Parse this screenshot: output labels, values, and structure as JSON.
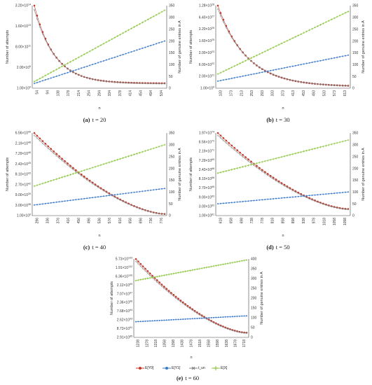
{
  "colors": {
    "ey0": "#c0392b",
    "ey1": "#3a78c9",
    "tun": "#7f7f7f",
    "ex": "#8cc63f",
    "axis": "#444444"
  },
  "legend": [
    {
      "key": "ey0",
      "label": "E[Y0]"
    },
    {
      "key": "ey1",
      "label": "E[Y1]"
    },
    {
      "key": "tun",
      "label": "t_un"
    },
    {
      "key": "ex",
      "label": "E[X]"
    }
  ],
  "chart_data": [
    {
      "type": "line",
      "caption_letter": "(a)",
      "caption_text": "t = 20",
      "xlabel": "n",
      "ylabel_left": "Number of attempts",
      "ylabel_right": "Number of genuine entries in A",
      "x_ticks": [
        "54",
        "94",
        "138",
        "178",
        "214",
        "254",
        "294",
        "334",
        "378",
        "414",
        "454",
        "494",
        "534"
      ],
      "y_left_ticks": [
        "1.00×10^0",
        "2.00×10^5",
        "8.00×10^11",
        "1.60×10^13",
        "3.20×10^14"
      ],
      "y_right_ticks": [
        "0",
        "50",
        "100",
        "150",
        "200",
        "250",
        "300",
        "350"
      ],
      "y_right_lim": [
        0,
        350
      ],
      "n_points": 48,
      "series": [
        {
          "key": "ey0",
          "axis": "left",
          "start": 1.0,
          "end": 0.06,
          "shape": "decay",
          "k": 6.5
        },
        {
          "key": "tun",
          "axis": "left",
          "start": 0.95,
          "end": 0.055,
          "shape": "decay",
          "k": 6.2
        },
        {
          "key": "ey1",
          "axis": "right",
          "start": 20,
          "end": 200,
          "shape": "linear"
        },
        {
          "key": "ex",
          "axis": "right",
          "start": 28,
          "end": 330,
          "shape": "linear"
        }
      ]
    },
    {
      "type": "line",
      "caption_letter": "(b)",
      "caption_text": "t = 30",
      "xlabel": "n",
      "ylabel_left": "Number of attempts",
      "ylabel_right": "Number of genuine entries in A",
      "x_ticks": [
        "133",
        "173",
        "213",
        "253",
        "293",
        "333",
        "373",
        "413",
        "453",
        "493",
        "533",
        "573",
        "613"
      ],
      "y_left_ticks": [
        "1.00×10^0",
        "2.00×10^21",
        "6.00×10^22",
        "2.00×10^23",
        "1.60×10^25",
        "3.20×10^26",
        "6.40×10^27",
        "1.28×10^28"
      ],
      "y_right_ticks": [
        "0",
        "50",
        "100",
        "150",
        "200",
        "250",
        "300",
        "350"
      ],
      "y_right_lim": [
        0,
        350
      ],
      "n_points": 48,
      "series": [
        {
          "key": "ey0",
          "axis": "left",
          "start": 1.0,
          "end": 0.03,
          "shape": "decay",
          "k": 4.5
        },
        {
          "key": "tun",
          "axis": "left",
          "start": 0.96,
          "end": 0.028,
          "shape": "decay",
          "k": 4.3
        },
        {
          "key": "ey1",
          "axis": "right",
          "start": 30,
          "end": 140,
          "shape": "linear"
        },
        {
          "key": "ex",
          "axis": "right",
          "start": 60,
          "end": 325,
          "shape": "linear"
        }
      ]
    },
    {
      "type": "line",
      "caption_letter": "(c)",
      "caption_text": "t = 40",
      "xlabel": "n",
      "ylabel_left": "Number of attempts",
      "ylabel_right": "Number of genuine entries in A",
      "x_ticks": [
        "296",
        "336",
        "376",
        "416",
        "456",
        "496",
        "536",
        "576",
        "616",
        "656",
        "696",
        "736",
        "776"
      ],
      "y_left_ticks": [
        "1.00×10^0",
        "3.00×10^38",
        "9.00×10^39",
        "2.70×10^42",
        "8.10×10^43",
        "2.43×10^45",
        "7.29×10^46",
        "2.19×10^48",
        "6.56×10^49"
      ],
      "y_right_ticks": [
        "0",
        "50",
        "100",
        "150",
        "200",
        "250",
        "300",
        "350"
      ],
      "y_right_lim": [
        0,
        350
      ],
      "n_points": 48,
      "series": [
        {
          "key": "ey0",
          "axis": "left",
          "start": 1.0,
          "end": 0.02,
          "shape": "concave"
        },
        {
          "key": "tun",
          "axis": "left",
          "start": 0.97,
          "end": 0.018,
          "shape": "concave"
        },
        {
          "key": "ey1",
          "axis": "right",
          "start": 45,
          "end": 115,
          "shape": "linear"
        },
        {
          "key": "ex",
          "axis": "right",
          "start": 125,
          "end": 300,
          "shape": "linear"
        }
      ]
    },
    {
      "type": "line",
      "caption_letter": "(d)",
      "caption_text": "t = 50",
      "xlabel": "n",
      "ylabel_left": "Number of attempts",
      "ylabel_right": "Number of genuine entries in A",
      "x_ticks": [
        "618",
        "658",
        "698",
        "738",
        "778",
        "818",
        "858",
        "898",
        "938",
        "978",
        "1018",
        "1058",
        "1098"
      ],
      "y_left_ticks": [
        "1.00×10^61",
        "3.00×10^62",
        "9.00×10^63",
        "2.70×10^65",
        "8.10×10^66",
        "2.43×10^68",
        "7.29×10^69",
        "2.19×10^71",
        "6.56×10^72",
        "1.97×10^74"
      ],
      "y_right_ticks": [
        "0",
        "50",
        "100",
        "150",
        "200",
        "250",
        "300",
        "350"
      ],
      "y_right_lim": [
        0,
        350
      ],
      "n_points": 48,
      "series": [
        {
          "key": "ey0",
          "axis": "left",
          "start": 1.0,
          "end": 0.08,
          "shape": "concave"
        },
        {
          "key": "tun",
          "axis": "left",
          "start": 0.97,
          "end": 0.075,
          "shape": "concave"
        },
        {
          "key": "ey1",
          "axis": "right",
          "start": 50,
          "end": 100,
          "shape": "linear"
        },
        {
          "key": "ex",
          "axis": "right",
          "start": 180,
          "end": 320,
          "shape": "linear"
        }
      ]
    },
    {
      "type": "line",
      "caption_letter": "(e)",
      "caption_text": "t = 60",
      "xlabel": "n",
      "ylabel_left": "Number of attempts",
      "ylabel_right": "Number of genuine entries in A",
      "x_ticks": [
        "1238",
        "1278",
        "1318",
        "1358",
        "1398",
        "1438",
        "1478",
        "1518",
        "1558",
        "1598",
        "1638",
        "1678",
        "1718"
      ],
      "y_left_ticks": [
        "2.91×10^85",
        "8.73×10^91",
        "2.62×10^93",
        "7.68×10^94",
        "2.36×10^96",
        "7.07×10^97",
        "2.12×10^99",
        "6.36×10^100",
        "1.91×10^102",
        "5.73×10^103"
      ],
      "y_right_ticks": [
        "0",
        "50",
        "100",
        "150",
        "200",
        "250",
        "300",
        "350",
        "400"
      ],
      "y_right_lim": [
        0,
        400
      ],
      "n_points": 48,
      "series": [
        {
          "key": "ey0",
          "axis": "left",
          "start": 1.0,
          "end": 0.06,
          "shape": "concave"
        },
        {
          "key": "tun",
          "axis": "left",
          "start": 0.97,
          "end": 0.055,
          "shape": "concave"
        },
        {
          "key": "ey1",
          "axis": "right",
          "start": 80,
          "end": 110,
          "shape": "linear"
        },
        {
          "key": "ex",
          "axis": "right",
          "start": 290,
          "end": 395,
          "shape": "linear"
        }
      ]
    }
  ]
}
